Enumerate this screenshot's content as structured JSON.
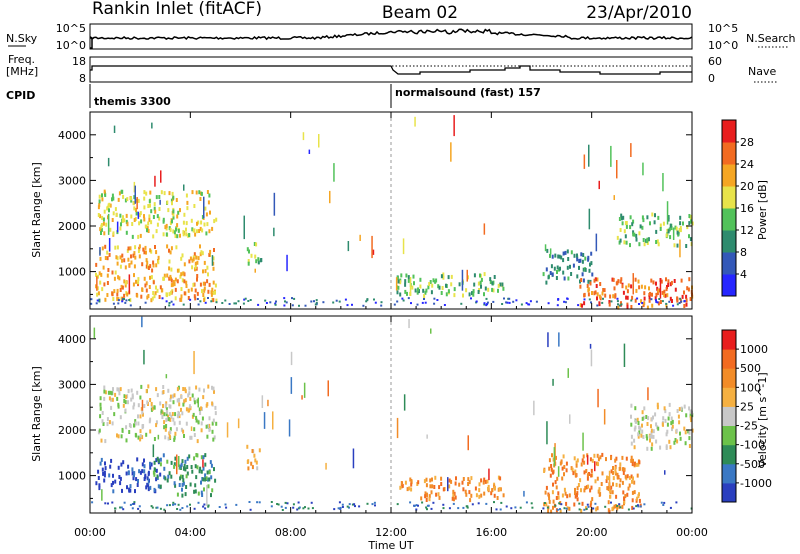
{
  "header": {
    "title": "Rankin Inlet (fitACF)",
    "beam": "Beam 02",
    "date": "23/Apr/2010"
  },
  "panels": {
    "nsky": {
      "left_label": "N.Sky",
      "right_label": "N.Search",
      "left_ticks": [
        "10^5",
        "10^0"
      ],
      "right_ticks": [
        "10^5",
        "10^0"
      ]
    },
    "freq": {
      "left_label_1": "Freq.",
      "left_label_2": "[MHz]",
      "right_label": "Nave",
      "left_ticks": [
        "18",
        "8"
      ],
      "right_ticks": [
        "60",
        "0"
      ]
    },
    "cpid": {
      "label": "CPID",
      "modes": [
        {
          "name": "themis 3300",
          "start_hour": 0
        },
        {
          "name": "normalsound (fast) 157",
          "start_hour": 12
        }
      ]
    }
  },
  "chart_data": {
    "type": "heatmap",
    "xlabel": "Time UT",
    "x_ticks": [
      "00:00",
      "04:00",
      "08:00",
      "12:00",
      "16:00",
      "20:00",
      "00:00"
    ],
    "x_range_hours": [
      0,
      24
    ],
    "ylabel": "Slant Range [km]",
    "y_range_km": [
      180,
      4500
    ],
    "y_ticks": [
      1000,
      2000,
      3000,
      4000
    ],
    "panels": [
      {
        "name": "power",
        "colorbar_label": "Power [dB]",
        "colorbar_ticks": [
          "4",
          "8",
          "12",
          "16",
          "20",
          "24",
          "28"
        ],
        "colorbar_colors": [
          "#2626ff",
          "#3358b8",
          "#2e8b6e",
          "#52c25a",
          "#e8e34a",
          "#f5a623",
          "#f26b21",
          "#e81e1e"
        ],
        "regions": [
          {
            "t0": 0.3,
            "t1": 5.0,
            "r0": 1800,
            "r1": 2800,
            "level": 4
          },
          {
            "t0": 0.2,
            "t1": 5.0,
            "r0": 400,
            "r1": 1600,
            "level": 5
          },
          {
            "t0": 6.2,
            "t1": 6.8,
            "r0": 1200,
            "r1": 1700,
            "level": 3
          },
          {
            "t0": 12.2,
            "t1": 16.5,
            "r0": 500,
            "r1": 1000,
            "level": 3
          },
          {
            "t0": 18.0,
            "t1": 20.0,
            "r0": 800,
            "r1": 1500,
            "level": 2
          },
          {
            "t0": 19.5,
            "t1": 24.0,
            "r0": 250,
            "r1": 900,
            "level": 6
          },
          {
            "t0": 21.0,
            "t1": 24.0,
            "r0": 1600,
            "r1": 2300,
            "level": 3
          }
        ]
      },
      {
        "name": "velocity",
        "colorbar_label": "Velocity [m s^-1]",
        "colorbar_ticks": [
          "1000",
          "500",
          "100",
          "25",
          "-25",
          "-100",
          "-500",
          "-1000"
        ],
        "colorbar_colors": [
          "#2a3fbf",
          "#3a78c4",
          "#2e8b57",
          "#6cc24a",
          "#c8c8c8",
          "#f5b041",
          "#f28c28",
          "#f26b21",
          "#e81e1e"
        ],
        "regions": [
          {
            "t0": 0.3,
            "t1": 5.0,
            "r0": 1800,
            "r1": 3000,
            "level": 4
          },
          {
            "t0": 0.2,
            "t1": 2.8,
            "r0": 700,
            "r1": 1400,
            "level": 0
          },
          {
            "t0": 2.5,
            "t1": 5.0,
            "r0": 600,
            "r1": 1500,
            "level": 2
          },
          {
            "t0": 6.2,
            "t1": 6.8,
            "r0": 1200,
            "r1": 1700,
            "level": 5
          },
          {
            "t0": 12.2,
            "t1": 16.5,
            "r0": 500,
            "r1": 1000,
            "level": 6
          },
          {
            "t0": 18.0,
            "t1": 22.0,
            "r0": 250,
            "r1": 1500,
            "level": 6
          },
          {
            "t0": 21.5,
            "t1": 24.0,
            "r0": 1600,
            "r1": 2600,
            "level": 4
          }
        ]
      }
    ]
  }
}
